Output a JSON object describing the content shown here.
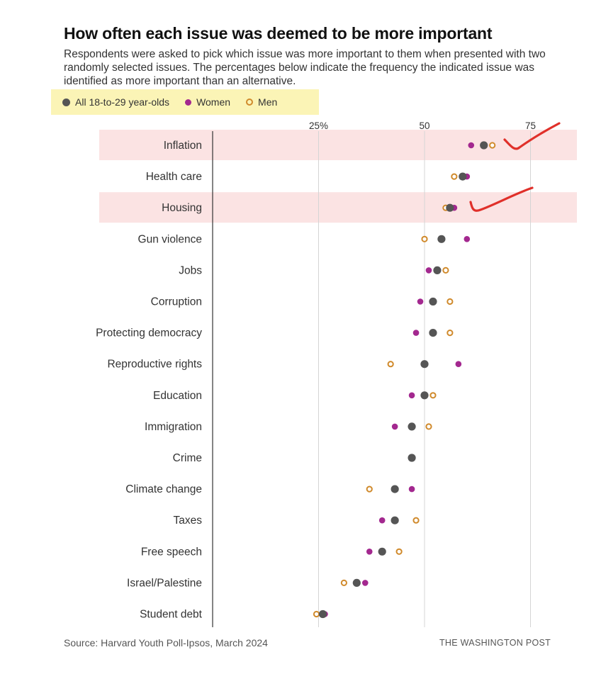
{
  "title": "How often each issue was deemed to be more important",
  "subtitle": "Respondents were asked to pick which issue was more important to them when presented with two randomly selected issues. The percentages below indicate the frequency the indicated issue was identified as more important than an alternative.",
  "legend": {
    "all": "All 18-to-29 year-olds",
    "women": "Women",
    "men": "Men"
  },
  "source": "Source: Harvard Youth Poll-Ipsos, March 2024",
  "credit": "THE WASHINGTON POST",
  "colors": {
    "all": "#555555",
    "women": "#a3288f",
    "men": "#d08a2c",
    "highlight": "#fbe3e3",
    "annotation": "#e0302a",
    "grid": "#d4d4d4",
    "axis": "#333333"
  },
  "chart_data": {
    "type": "scatter",
    "x_ticks": [
      {
        "value": 25,
        "label": "25%"
      },
      {
        "value": 50,
        "label": "50"
      },
      {
        "value": 75,
        "label": "75"
      }
    ],
    "xlim": [
      0,
      80
    ],
    "highlighted_categories": [
      "Inflation",
      "Housing"
    ],
    "annotations": [
      {
        "type": "checkmark",
        "category": "Inflation"
      },
      {
        "type": "checkmark",
        "category": "Housing"
      }
    ],
    "categories": [
      "Inflation",
      "Health care",
      "Housing",
      "Gun violence",
      "Jobs",
      "Corruption",
      "Protecting democracy",
      "Reproductive rights",
      "Education",
      "Immigration",
      "Crime",
      "Climate change",
      "Taxes",
      "Free speech",
      "Israel/Palestine",
      "Student debt"
    ],
    "series": [
      {
        "name": "All 18-to-29 year-olds",
        "key": "all",
        "values": [
          64,
          59,
          56,
          54,
          53,
          52,
          52,
          50,
          50,
          47,
          47,
          43,
          43,
          40,
          34,
          26
        ]
      },
      {
        "name": "Women",
        "key": "women",
        "values": [
          61,
          60,
          57,
          60,
          51,
          49,
          48,
          58,
          47,
          43,
          47,
          47,
          40,
          37,
          36,
          26.5
        ]
      },
      {
        "name": "Men",
        "key": "men",
        "values": [
          66,
          57,
          55,
          50,
          55,
          56,
          56,
          42,
          52,
          51,
          47,
          37,
          48,
          44,
          31,
          24.5
        ]
      }
    ]
  }
}
